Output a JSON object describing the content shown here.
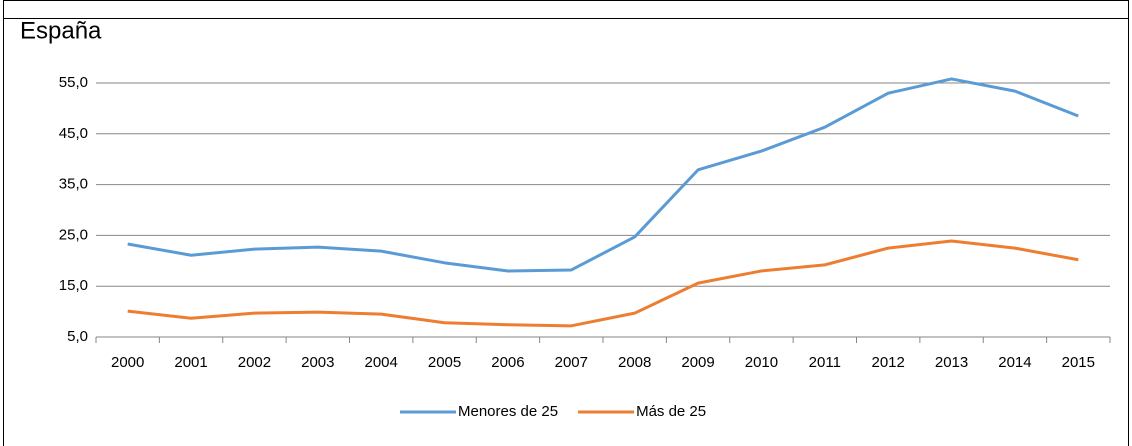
{
  "chart_data": {
    "type": "line",
    "title": "España",
    "categories": [
      "2000",
      "2001",
      "2002",
      "2003",
      "2004",
      "2005",
      "2006",
      "2007",
      "2008",
      "2009",
      "2010",
      "2011",
      "2012",
      "2013",
      "2014",
      "2015"
    ],
    "series": [
      {
        "name": "Menores de 25",
        "color": "#5b9bd5",
        "values": [
          23.3,
          21.1,
          22.3,
          22.7,
          21.9,
          19.6,
          18.0,
          18.2,
          24.7,
          37.9,
          41.6,
          46.3,
          53.0,
          55.8,
          53.4,
          48.5
        ]
      },
      {
        "name": "Más de 25",
        "color": "#ed7d31",
        "values": [
          10.1,
          8.7,
          9.7,
          9.9,
          9.5,
          7.8,
          7.4,
          7.2,
          9.7,
          15.6,
          18.0,
          19.2,
          22.5,
          23.9,
          22.5,
          20.2
        ]
      }
    ],
    "ylim": [
      5,
      55
    ],
    "yticks": [
      {
        "value": 5,
        "label": "5,0"
      },
      {
        "value": 15,
        "label": "15,0"
      },
      {
        "value": 25,
        "label": "25,0"
      },
      {
        "value": 35,
        "label": "35,0"
      },
      {
        "value": 45,
        "label": "45,0"
      },
      {
        "value": 55,
        "label": "55,0"
      }
    ],
    "grid": true,
    "legend": "bottom"
  }
}
